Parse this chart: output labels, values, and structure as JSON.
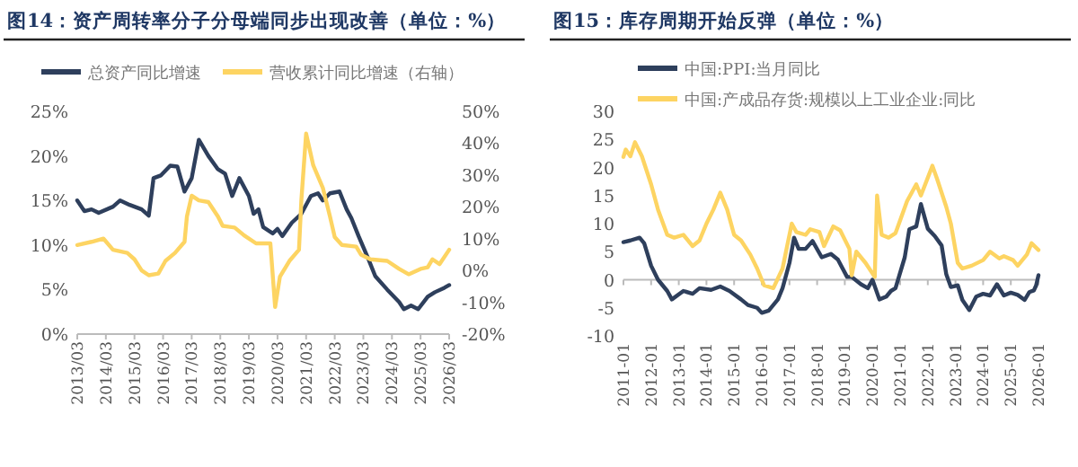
{
  "chart_data": [
    {
      "type": "line",
      "title": "图14：资产周转率分子分母端同步出现改善（单位：%）",
      "legend": "top",
      "xlim": [
        "2013-03",
        "2026-03"
      ],
      "xticks": [
        {
          "value": "2013-03",
          "label": "2013/03"
        },
        {
          "value": "2014-03",
          "label": "2014/03"
        },
        {
          "value": "2015-03",
          "label": "2015/03"
        },
        {
          "value": "2016-03",
          "label": "2016/03"
        },
        {
          "value": "2017-03",
          "label": "2017/03"
        },
        {
          "value": "2018-03",
          "label": "2018/03"
        },
        {
          "value": "2019-03",
          "label": "2019/03"
        },
        {
          "value": "2020-03",
          "label": "2020/03"
        },
        {
          "value": "2021-03",
          "label": "2021/03"
        },
        {
          "value": "2022-03",
          "label": "2022/03"
        },
        {
          "value": "2023-03",
          "label": "2023/03"
        },
        {
          "value": "2024-03",
          "label": "2024/03"
        },
        {
          "value": "2025-03",
          "label": "2025/03"
        },
        {
          "value": "2026-03",
          "label": "2026/03"
        }
      ],
      "ylim": [
        0,
        25
      ],
      "yticks": [
        {
          "value": 0,
          "label": "0%"
        },
        {
          "value": 5,
          "label": "5%"
        },
        {
          "value": 10,
          "label": "10%"
        },
        {
          "value": 15,
          "label": "15%"
        },
        {
          "value": 20,
          "label": "20%"
        },
        {
          "value": 25,
          "label": "25%"
        }
      ],
      "y2lim": [
        -20,
        50
      ],
      "y2ticks": [
        {
          "value": -20,
          "label": "-20%"
        },
        {
          "value": -10,
          "label": "-10%"
        },
        {
          "value": 0,
          "label": "0%"
        },
        {
          "value": 10,
          "label": "10%"
        },
        {
          "value": 20,
          "label": "20%"
        },
        {
          "value": 30,
          "label": "30%"
        },
        {
          "value": 40,
          "label": "40%"
        },
        {
          "value": 50,
          "label": "50%"
        }
      ],
      "series": [
        {
          "name": "总资产同比增速",
          "color": "#2e3f5c",
          "x": [
            "2013-03",
            "2013-06",
            "2013-09",
            "2013-12",
            "2014-06",
            "2014-09",
            "2015-01",
            "2015-06",
            "2015-09",
            "2015-11",
            "2016-02",
            "2016-06",
            "2016-09",
            "2016-12",
            "2017-03",
            "2017-06",
            "2017-10",
            "2018-02",
            "2018-05",
            "2018-08",
            "2018-11",
            "2019-03",
            "2019-05",
            "2019-07",
            "2019-09",
            "2020-01",
            "2020-03",
            "2020-05",
            "2020-09",
            "2021-01",
            "2021-05",
            "2021-08",
            "2021-10",
            "2022-01",
            "2022-05",
            "2022-08",
            "2022-10",
            "2023-01",
            "2023-05",
            "2023-08",
            "2024-01",
            "2024-06",
            "2024-08",
            "2024-11",
            "2025-02",
            "2025-06",
            "2025-09",
            "2026-01",
            "2026-03"
          ],
          "values": [
            15.0,
            13.8,
            14.0,
            13.6,
            14.3,
            15.0,
            14.5,
            14.0,
            13.3,
            17.5,
            17.8,
            18.9,
            18.8,
            16.0,
            17.5,
            21.8,
            20.0,
            18.5,
            18.0,
            15.5,
            17.5,
            15.5,
            13.5,
            14.0,
            12.0,
            11.3,
            11.8,
            11.0,
            12.5,
            13.5,
            15.5,
            15.8,
            15.0,
            15.8,
            16.0,
            14.0,
            13.0,
            11.0,
            8.5,
            6.5,
            5.0,
            3.6,
            2.8,
            3.2,
            2.8,
            4.2,
            4.7,
            5.2,
            5.5
          ]
        },
        {
          "name": "营收累计同比增速（右轴）",
          "color": "#fdd462",
          "axis": "y2",
          "x": [
            "2013-03",
            "2013-09",
            "2014-02",
            "2014-06",
            "2014-12",
            "2015-03",
            "2015-06",
            "2015-09",
            "2016-01",
            "2016-04",
            "2016-08",
            "2016-12",
            "2017-01",
            "2017-03",
            "2017-06",
            "2017-10",
            "2018-02",
            "2018-04",
            "2018-09",
            "2019-01",
            "2019-06",
            "2019-12",
            "2020-02",
            "2020-04",
            "2020-08",
            "2020-12",
            "2021-01",
            "2021-03",
            "2021-06",
            "2021-10",
            "2022-01",
            "2022-03",
            "2022-06",
            "2022-12",
            "2023-02",
            "2023-06",
            "2024-01",
            "2024-06",
            "2024-10",
            "2025-03",
            "2025-06",
            "2025-08",
            "2025-11",
            "2026-03"
          ],
          "values": [
            8,
            9,
            10,
            6.5,
            5.5,
            3.5,
            0,
            -1.5,
            -1.0,
            3,
            5.5,
            9,
            17,
            23.5,
            22,
            21.5,
            17,
            14,
            13.5,
            11,
            8.5,
            8.5,
            -11.5,
            -2,
            3,
            6.5,
            22,
            43,
            33,
            26,
            17,
            10.5,
            8.0,
            7.5,
            5,
            3.5,
            3,
            0.5,
            -1.2,
            0.5,
            1,
            3.5,
            2,
            6.5
          ]
        }
      ]
    },
    {
      "type": "line",
      "title": "图15：库存周期开始反弹（单位：%）",
      "legend": "top left",
      "xlim": [
        "2011-01",
        "2026-01"
      ],
      "xticks": [
        {
          "value": "2011-01",
          "label": "2011-01"
        },
        {
          "value": "2012-01",
          "label": "2012-01"
        },
        {
          "value": "2013-01",
          "label": "2013-01"
        },
        {
          "value": "2014-01",
          "label": "2014-01"
        },
        {
          "value": "2015-01",
          "label": "2015-01"
        },
        {
          "value": "2016-01",
          "label": "2016-01"
        },
        {
          "value": "2017-01",
          "label": "2017-01"
        },
        {
          "value": "2018-01",
          "label": "2018-01"
        },
        {
          "value": "2019-01",
          "label": "2019-01"
        },
        {
          "value": "2020-01",
          "label": "2020-01"
        },
        {
          "value": "2021-01",
          "label": "2021-01"
        },
        {
          "value": "2022-01",
          "label": "2022-01"
        },
        {
          "value": "2023-01",
          "label": "2023-01"
        },
        {
          "value": "2024-01",
          "label": "2024-01"
        },
        {
          "value": "2025-01",
          "label": "2025-01"
        },
        {
          "value": "2026-01",
          "label": "2026-01"
        }
      ],
      "ylim": [
        -10,
        30
      ],
      "yticks": [
        -10,
        -5,
        0,
        5,
        10,
        15,
        20,
        25,
        30
      ],
      "series": [
        {
          "name": "中国:PPI:当月同比",
          "color": "#2e3f5c",
          "x": [
            "2011-01",
            "2011-04",
            "2011-08",
            "2011-10",
            "2012-01",
            "2012-04",
            "2012-08",
            "2012-10",
            "2013-03",
            "2013-07",
            "2013-10",
            "2014-03",
            "2014-07",
            "2014-11",
            "2015-04",
            "2015-07",
            "2015-11",
            "2016-01",
            "2016-04",
            "2016-08",
            "2016-10",
            "2017-01",
            "2017-03",
            "2017-05",
            "2017-08",
            "2017-11",
            "2018-03",
            "2018-07",
            "2018-10",
            "2019-02",
            "2019-04",
            "2019-08",
            "2019-11",
            "2020-01",
            "2020-04",
            "2020-07",
            "2020-09",
            "2020-11",
            "2021-03",
            "2021-05",
            "2021-08",
            "2021-10",
            "2022-01",
            "2022-04",
            "2022-07",
            "2022-09",
            "2022-11",
            "2023-02",
            "2023-04",
            "2023-07",
            "2023-10",
            "2024-01",
            "2024-04",
            "2024-07",
            "2024-10",
            "2025-01",
            "2025-04",
            "2025-07",
            "2025-09",
            "2025-11",
            "2025-12",
            "2026-01"
          ],
          "values": [
            6.7,
            7.0,
            7.5,
            6.5,
            2.5,
            0,
            -2.0,
            -3.5,
            -2.0,
            -2.5,
            -1.5,
            -1.8,
            -1.2,
            -2.0,
            -3.5,
            -4.5,
            -5.0,
            -5.9,
            -5.5,
            -3.5,
            -1.5,
            3,
            7.5,
            5.5,
            5.5,
            6.9,
            4.0,
            4.6,
            3.6,
            0.5,
            0.5,
            -0.8,
            -1.5,
            0,
            -3.5,
            -3.0,
            -2.0,
            -1.5,
            4,
            9,
            9.5,
            13.5,
            9.1,
            7.8,
            6.1,
            1.0,
            -1.3,
            -1,
            -3.6,
            -5.4,
            -3.0,
            -2.5,
            -2.8,
            -0.8,
            -2.8,
            -2.3,
            -2.7,
            -3.6,
            -2.2,
            -1.9,
            -1.0,
            0.8
          ]
        },
        {
          "name": "中国:产成品存货:规模以上工业企业:同比",
          "color": "#fdd462",
          "x": [
            "2011-01",
            "2011-02",
            "2011-04",
            "2011-06",
            "2011-09",
            "2012-01",
            "2012-04",
            "2012-08",
            "2012-11",
            "2013-03",
            "2013-07",
            "2013-10",
            "2014-01",
            "2014-04",
            "2014-07",
            "2014-10",
            "2015-01",
            "2015-04",
            "2015-08",
            "2015-11",
            "2016-02",
            "2016-06",
            "2016-10",
            "2017-02",
            "2017-04",
            "2017-08",
            "2017-10",
            "2018-02",
            "2018-04",
            "2018-08",
            "2018-11",
            "2019-03",
            "2019-04",
            "2019-06",
            "2019-10",
            "2020-02",
            "2020-03",
            "2020-05",
            "2020-08",
            "2020-11",
            "2021-04",
            "2021-08",
            "2021-10",
            "2022-03",
            "2022-05",
            "2022-09",
            "2022-11",
            "2023-02",
            "2023-04",
            "2023-08",
            "2024-01",
            "2024-04",
            "2024-08",
            "2024-10",
            "2025-02",
            "2025-04",
            "2025-08",
            "2025-10",
            "2026-01"
          ],
          "values": [
            21.9,
            23.2,
            22.0,
            24.5,
            22.0,
            17,
            12.5,
            8,
            7.5,
            8,
            6,
            7,
            10,
            12.5,
            15.5,
            12.5,
            8,
            7,
            4.5,
            2,
            -1.0,
            -1.5,
            2,
            10,
            8.5,
            8.0,
            9.0,
            8.5,
            6.0,
            9.5,
            8.8,
            5.5,
            0.8,
            5,
            3,
            0.5,
            15,
            8,
            7.5,
            8.3,
            14,
            17,
            15,
            20.3,
            18,
            13,
            10,
            3,
            2,
            2.5,
            3.5,
            5,
            3.8,
            4.2,
            3.5,
            2.5,
            4.5,
            6.5,
            5.3
          ]
        }
      ]
    }
  ]
}
